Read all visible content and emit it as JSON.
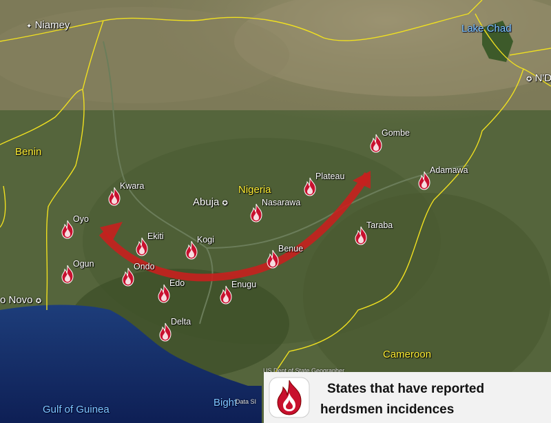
{
  "map": {
    "countries": {
      "nigeria": "Nigeria",
      "benin": "Benin",
      "cameroon": "Cameroon"
    },
    "cities": {
      "niamey": "Niamey",
      "abuja": "Abuja",
      "porto_novo": "o Novo",
      "ndjamena": "N'D"
    },
    "water": {
      "lake_chad": "Lake Chad",
      "gulf_of_guinea": "Gulf of Guinea",
      "bight": "Bight"
    },
    "attribution": {
      "state_dept": "US Dept of State Geographer",
      "data": "Data SI"
    },
    "states": [
      "Gombe",
      "Adamawa",
      "Plateau",
      "Kwara",
      "Nasarawa",
      "Oyo",
      "Taraba",
      "Ekiti",
      "Kogi",
      "Benue",
      "Ogun",
      "Ondo",
      "Edo",
      "Enugu",
      "Delta"
    ],
    "arrow_color": "#c8201e",
    "border_color": "#f0e020",
    "legend": {
      "line1": "States that have reported",
      "line2": "herdsmen incidences",
      "icon": "fire-icon"
    }
  }
}
